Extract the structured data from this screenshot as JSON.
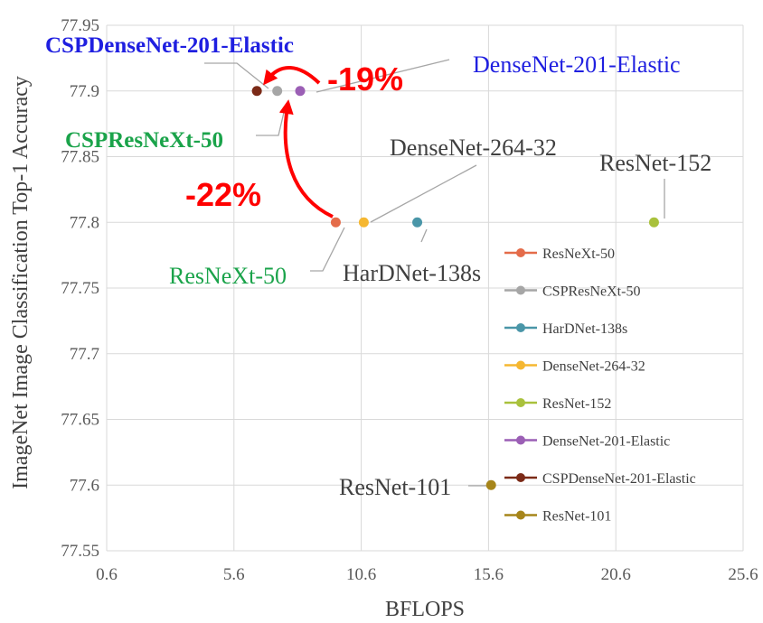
{
  "chart_data": {
    "type": "scatter",
    "xlabel": "BFLOPS",
    "ylabel": "ImageNet Image Classification Top-1 Accuracy",
    "xlim": [
      0.6,
      25.6
    ],
    "ylim": [
      77.55,
      77.95
    ],
    "x_ticks": [
      "0.6",
      "5.6",
      "10.6",
      "15.6",
      "20.6",
      "25.6"
    ],
    "y_ticks": [
      "77.55",
      "77.6",
      "77.65",
      "77.7",
      "77.75",
      "77.8",
      "77.85",
      "77.9",
      "77.95"
    ],
    "grid": true,
    "legend_position": "right",
    "series": [
      {
        "name": "ResNeXt-50",
        "color": "#e46c4a",
        "x": 9.6,
        "y": 77.8
      },
      {
        "name": "CSPResNeXt-50",
        "color": "#a6a6a6",
        "x": 7.3,
        "y": 77.9
      },
      {
        "name": "HarDNet-138s",
        "color": "#4a96a8",
        "x": 12.8,
        "y": 77.8
      },
      {
        "name": "DenseNet-264-32",
        "color": "#f5b731",
        "x": 10.7,
        "y": 77.8
      },
      {
        "name": "ResNet-152",
        "color": "#a9c13c",
        "x": 22.1,
        "y": 77.8
      },
      {
        "name": "DenseNet-201-Elastic",
        "color": "#9b5fb5",
        "x": 8.2,
        "y": 77.9
      },
      {
        "name": "CSPDenseNet-201-Elastic",
        "color": "#7b2a17",
        "x": 6.5,
        "y": 77.9
      },
      {
        "name": "ResNet-101",
        "color": "#a6851a",
        "x": 15.7,
        "y": 77.6
      }
    ],
    "annotations": [
      {
        "text": "CSPDenseNet-201-Elastic",
        "color": "#1f1fe0",
        "bold": true
      },
      {
        "text": "DenseNet-201-Elastic",
        "color": "#1f1fe0",
        "bold": false
      },
      {
        "text": "CSPResNeXt-50",
        "color": "#1aa34a",
        "bold": true
      },
      {
        "text": "DenseNet-264-32",
        "color": "#404040",
        "bold": false
      },
      {
        "text": "ResNet-152",
        "color": "#404040",
        "bold": false
      },
      {
        "text": "ResNeXt-50",
        "color": "#1aa34a",
        "bold": false
      },
      {
        "text": "HarDNet-138s",
        "color": "#404040",
        "bold": false
      },
      {
        "text": "ResNet-101",
        "color": "#404040",
        "bold": false
      }
    ],
    "reductions": [
      "-19%",
      "-22%"
    ]
  }
}
